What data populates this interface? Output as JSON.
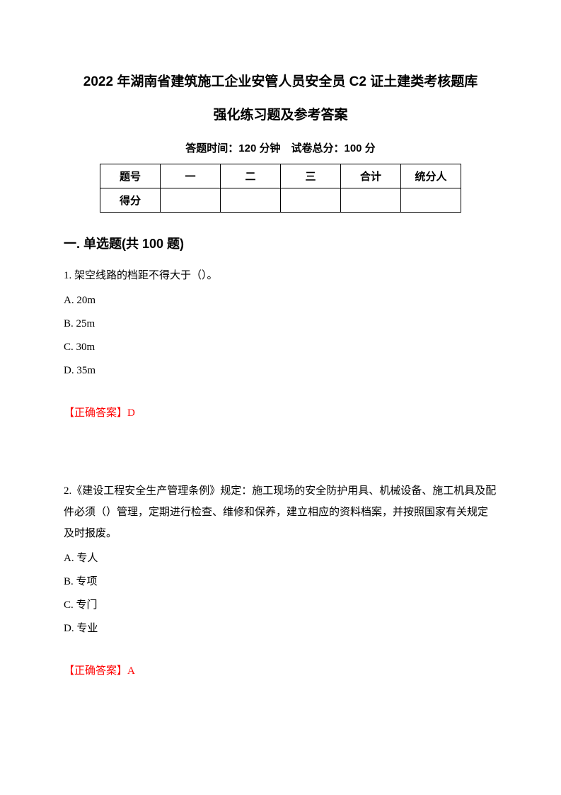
{
  "title_line1": "2022 年湖南省建筑施工企业安管人员安全员 C2 证土建类考核题库",
  "title_line2": "强化练习题及参考答案",
  "exam_info": "答题时间：120 分钟 试卷总分：100 分",
  "score_table": {
    "row1": {
      "label": "题号",
      "col1": "一",
      "col2": "二",
      "col3": "三",
      "col4": "合计",
      "col5": "统分人"
    },
    "row2": {
      "label": "得分",
      "col1": "",
      "col2": "",
      "col3": "",
      "col4": "",
      "col5": ""
    }
  },
  "section_heading": "一. 单选题(共 100 题)",
  "q1": {
    "text": "1. 架空线路的档距不得大于（）。",
    "optA": "A. 20m",
    "optB": "B. 25m",
    "optC": "C. 30m",
    "optD": "D. 35m",
    "answer": "【正确答案】D"
  },
  "q2": {
    "text": "2.《建设工程安全生产管理条例》规定：施工现场的安全防护用具、机械设备、施工机具及配件必须（）管理，定期进行检查、维修和保养，建立相应的资料档案，并按照国家有关规定及时报废。",
    "optA": "A. 专人",
    "optB": "B. 专项",
    "optC": "C. 专门",
    "optD": "D. 专业",
    "answer": "【正确答案】A"
  }
}
